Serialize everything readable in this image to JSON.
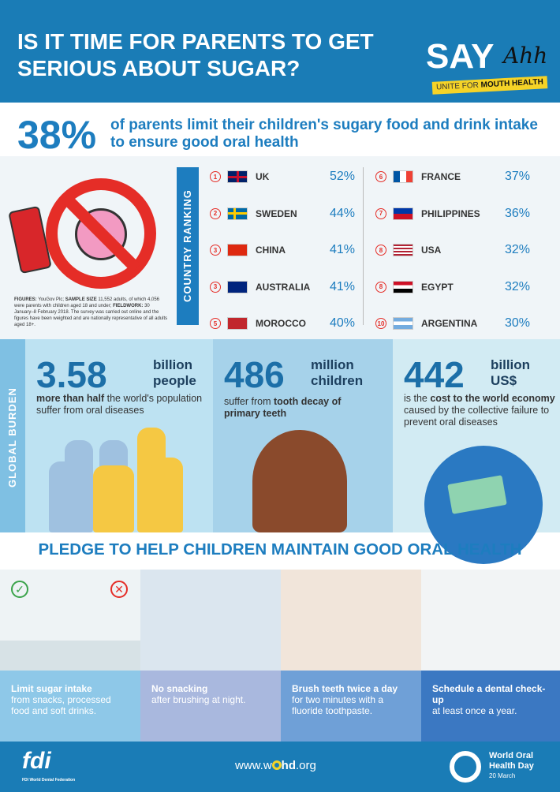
{
  "header": {
    "title": "IS IT TIME FOR PARENTS TO GET SERIOUS ABOUT SUGAR?",
    "logo_say": "SAY",
    "logo_ahh": "Ahh",
    "logo_tag_light": "UNITE FOR",
    "logo_tag_bold": "MOUTH HEALTH"
  },
  "headline": {
    "stat": "38%",
    "text": "of parents limit their children's sugary food and drink intake to ensure good oral health"
  },
  "notes": {
    "figures_label": "FIGURES:",
    "figures": "YouGov Plc;",
    "sample_label": "SAMPLE SIZE",
    "sample": "11,552 adults, of which 4,056 were parents with children aged 18 and under;",
    "fieldwork_label": "FIELDWORK:",
    "fieldwork": "30 January–8 February 2018. The survey was carried out online and the figures have been weighted and are nationally representative of all adults aged 18+."
  },
  "ranking": {
    "label": "COUNTRY RANKING",
    "left": [
      {
        "rank": "1",
        "country": "UK",
        "pct": "52%"
      },
      {
        "rank": "2",
        "country": "SWEDEN",
        "pct": "44%"
      },
      {
        "rank": "3",
        "country": "CHINA",
        "pct": "41%"
      },
      {
        "rank": "3",
        "country": "AUSTRALIA",
        "pct": "41%"
      },
      {
        "rank": "5",
        "country": "MOROCCO",
        "pct": "40%"
      }
    ],
    "right": [
      {
        "rank": "6",
        "country": "FRANCE",
        "pct": "37%"
      },
      {
        "rank": "7",
        "country": "PHILIPPINES",
        "pct": "36%"
      },
      {
        "rank": "8",
        "country": "USA",
        "pct": "32%"
      },
      {
        "rank": "8",
        "country": "EGYPT",
        "pct": "32%"
      },
      {
        "rank": "10",
        "country": "ARGENTINA",
        "pct": "30%"
      }
    ]
  },
  "burden": {
    "label": "GLOBAL BURDEN",
    "p1": {
      "num": "3.58",
      "unit1": "billion",
      "unit2": "people",
      "bold": "more than half",
      "text": " the world's population suffer from oral diseases"
    },
    "p2": {
      "num": "486",
      "unit1": "million",
      "unit2": "children",
      "text": "suffer from ",
      "bold": "tooth decay of primary teeth"
    },
    "p3": {
      "num": "442",
      "unit1": "billion",
      "unit2": "US$",
      "pre": "is the ",
      "bold": "cost to the world economy",
      "text": " caused by the collective failure to prevent oral diseases"
    }
  },
  "pledge": {
    "title": "PLEDGE TO HELP CHILDREN MAINTAIN GOOD ORAL HEALTH",
    "items": [
      {
        "bold": "Limit sugar intake",
        "text": "from snacks, processed food and soft drinks."
      },
      {
        "bold": "No snacking",
        "text": "after brushing at night."
      },
      {
        "bold": "Brush teeth twice a day",
        "text": "for two minutes with a fluoride toothpaste."
      },
      {
        "bold": "Schedule a dental check-up",
        "text": "at least once a year."
      }
    ]
  },
  "footer": {
    "fdi": "fdi",
    "fdi_sub": "FDI World Dental Federation",
    "url_a": "www.w",
    "url_b": "hd",
    "url_c": ".org",
    "wohd1": "World Oral",
    "wohd2": "Health Day",
    "date": "20 March"
  }
}
